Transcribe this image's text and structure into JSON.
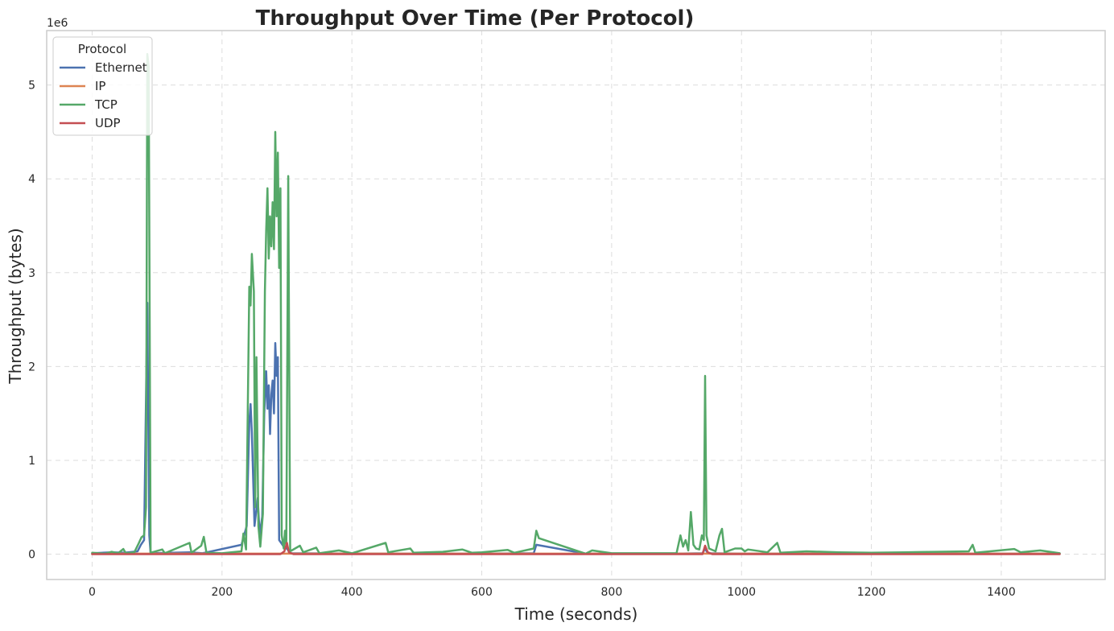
{
  "chart_data": {
    "type": "line",
    "title": "Throughput Over Time (Per Protocol)",
    "xlabel": "Time (seconds)",
    "ylabel": "Throughput (bytes)",
    "y_offset_label": "1e6",
    "xlim": [
      -70,
      1560
    ],
    "ylim": [
      -270000,
      5580000
    ],
    "x_ticks": [
      0,
      200,
      400,
      600,
      800,
      1000,
      1200,
      1400
    ],
    "y_ticks": [
      0,
      1,
      2,
      3,
      4,
      5
    ],
    "y_tick_unit": 1000000,
    "grid": true,
    "legend": {
      "title": "Protocol",
      "position": "top-left"
    },
    "series": [
      {
        "name": "Ethernet",
        "color": "#4c72b0",
        "points": [
          [
            0,
            10000
          ],
          [
            30,
            20000
          ],
          [
            50,
            15000
          ],
          [
            70,
            30000
          ],
          [
            75,
            100000
          ],
          [
            80,
            150000
          ],
          [
            85,
            2680000
          ],
          [
            88,
            200000
          ],
          [
            90,
            10000
          ],
          [
            150,
            20000
          ],
          [
            170,
            10000
          ],
          [
            230,
            100000
          ],
          [
            238,
            300000
          ],
          [
            242,
            1400000
          ],
          [
            244,
            1600000
          ],
          [
            246,
            1300000
          ],
          [
            250,
            300000
          ],
          [
            255,
            600000
          ],
          [
            258,
            200000
          ],
          [
            262,
            400000
          ],
          [
            265,
            1500000
          ],
          [
            268,
            1950000
          ],
          [
            270,
            1550000
          ],
          [
            272,
            1800000
          ],
          [
            274,
            1280000
          ],
          [
            276,
            1700000
          ],
          [
            278,
            1850000
          ],
          [
            280,
            1500000
          ],
          [
            282,
            2250000
          ],
          [
            284,
            1900000
          ],
          [
            286,
            2100000
          ],
          [
            288,
            150000
          ],
          [
            295,
            80000
          ],
          [
            300,
            60000
          ],
          [
            305,
            10000
          ],
          [
            400,
            5000
          ],
          [
            500,
            5000
          ],
          [
            600,
            5000
          ],
          [
            680,
            10000
          ],
          [
            684,
            100000
          ],
          [
            760,
            5000
          ],
          [
            800,
            5000
          ],
          [
            900,
            5000
          ],
          [
            940,
            10000
          ],
          [
            944,
            60000
          ],
          [
            948,
            10000
          ],
          [
            1000,
            5000
          ],
          [
            1200,
            5000
          ],
          [
            1400,
            5000
          ],
          [
            1490,
            5000
          ]
        ]
      },
      {
        "name": "IP",
        "color": "#dd8452",
        "points": [
          [
            0,
            5000
          ],
          [
            200,
            5000
          ],
          [
            400,
            5000
          ],
          [
            600,
            5000
          ],
          [
            800,
            5000
          ],
          [
            1000,
            5000
          ],
          [
            1200,
            5000
          ],
          [
            1490,
            5000
          ]
        ]
      },
      {
        "name": "TCP",
        "color": "#55a868",
        "points": [
          [
            0,
            15000
          ],
          [
            20,
            5000
          ],
          [
            30,
            25000
          ],
          [
            40,
            10000
          ],
          [
            48,
            55000
          ],
          [
            52,
            10000
          ],
          [
            65,
            20000
          ],
          [
            72,
            120000
          ],
          [
            76,
            180000
          ],
          [
            80,
            200000
          ],
          [
            83,
            500000
          ],
          [
            85,
            5330000
          ],
          [
            87,
            5200000
          ],
          [
            90,
            15000
          ],
          [
            108,
            50000
          ],
          [
            112,
            10000
          ],
          [
            150,
            120000
          ],
          [
            153,
            15000
          ],
          [
            168,
            90000
          ],
          [
            172,
            185000
          ],
          [
            176,
            15000
          ],
          [
            200,
            10000
          ],
          [
            230,
            30000
          ],
          [
            233,
            220000
          ],
          [
            237,
            50000
          ],
          [
            242,
            2850000
          ],
          [
            244,
            2650000
          ],
          [
            246,
            3200000
          ],
          [
            249,
            2800000
          ],
          [
            251,
            500000
          ],
          [
            253,
            2100000
          ],
          [
            256,
            300000
          ],
          [
            259,
            80000
          ],
          [
            263,
            430000
          ],
          [
            266,
            2800000
          ],
          [
            268,
            3450000
          ],
          [
            270,
            3900000
          ],
          [
            272,
            3150000
          ],
          [
            274,
            3600000
          ],
          [
            276,
            3280000
          ],
          [
            278,
            3750000
          ],
          [
            280,
            3250000
          ],
          [
            282,
            4500000
          ],
          [
            284,
            3600000
          ],
          [
            286,
            4280000
          ],
          [
            288,
            3050000
          ],
          [
            290,
            3900000
          ],
          [
            292,
            200000
          ],
          [
            295,
            60000
          ],
          [
            297,
            250000
          ],
          [
            299,
            80000
          ],
          [
            302,
            4030000
          ],
          [
            305,
            30000
          ],
          [
            320,
            90000
          ],
          [
            325,
            20000
          ],
          [
            345,
            70000
          ],
          [
            350,
            10000
          ],
          [
            380,
            40000
          ],
          [
            400,
            10000
          ],
          [
            452,
            120000
          ],
          [
            456,
            20000
          ],
          [
            490,
            60000
          ],
          [
            495,
            15000
          ],
          [
            540,
            25000
          ],
          [
            570,
            50000
          ],
          [
            585,
            15000
          ],
          [
            600,
            20000
          ],
          [
            640,
            45000
          ],
          [
            650,
            15000
          ],
          [
            680,
            60000
          ],
          [
            684,
            250000
          ],
          [
            688,
            170000
          ],
          [
            760,
            5000
          ],
          [
            770,
            40000
          ],
          [
            800,
            10000
          ],
          [
            900,
            10000
          ],
          [
            906,
            200000
          ],
          [
            910,
            80000
          ],
          [
            914,
            150000
          ],
          [
            918,
            40000
          ],
          [
            922,
            450000
          ],
          [
            926,
            100000
          ],
          [
            930,
            60000
          ],
          [
            935,
            50000
          ],
          [
            939,
            200000
          ],
          [
            942,
            150000
          ],
          [
            944,
            1900000
          ],
          [
            946,
            200000
          ],
          [
            950,
            60000
          ],
          [
            960,
            30000
          ],
          [
            966,
            200000
          ],
          [
            970,
            270000
          ],
          [
            974,
            20000
          ],
          [
            990,
            60000
          ],
          [
            1000,
            60000
          ],
          [
            1005,
            30000
          ],
          [
            1010,
            50000
          ],
          [
            1040,
            20000
          ],
          [
            1055,
            120000
          ],
          [
            1060,
            15000
          ],
          [
            1100,
            30000
          ],
          [
            1150,
            20000
          ],
          [
            1200,
            15000
          ],
          [
            1250,
            20000
          ],
          [
            1300,
            25000
          ],
          [
            1350,
            30000
          ],
          [
            1356,
            100000
          ],
          [
            1360,
            15000
          ],
          [
            1420,
            55000
          ],
          [
            1430,
            20000
          ],
          [
            1460,
            40000
          ],
          [
            1490,
            10000
          ]
        ]
      },
      {
        "name": "UDP",
        "color": "#c44e52",
        "points": [
          [
            0,
            0
          ],
          [
            100,
            0
          ],
          [
            200,
            0
          ],
          [
            290,
            0
          ],
          [
            296,
            30000
          ],
          [
            300,
            120000
          ],
          [
            303,
            20000
          ],
          [
            310,
            0
          ],
          [
            500,
            0
          ],
          [
            700,
            0
          ],
          [
            900,
            0
          ],
          [
            940,
            0
          ],
          [
            944,
            90000
          ],
          [
            948,
            20000
          ],
          [
            955,
            0
          ],
          [
            1100,
            0
          ],
          [
            1300,
            0
          ],
          [
            1490,
            0
          ]
        ]
      }
    ]
  }
}
